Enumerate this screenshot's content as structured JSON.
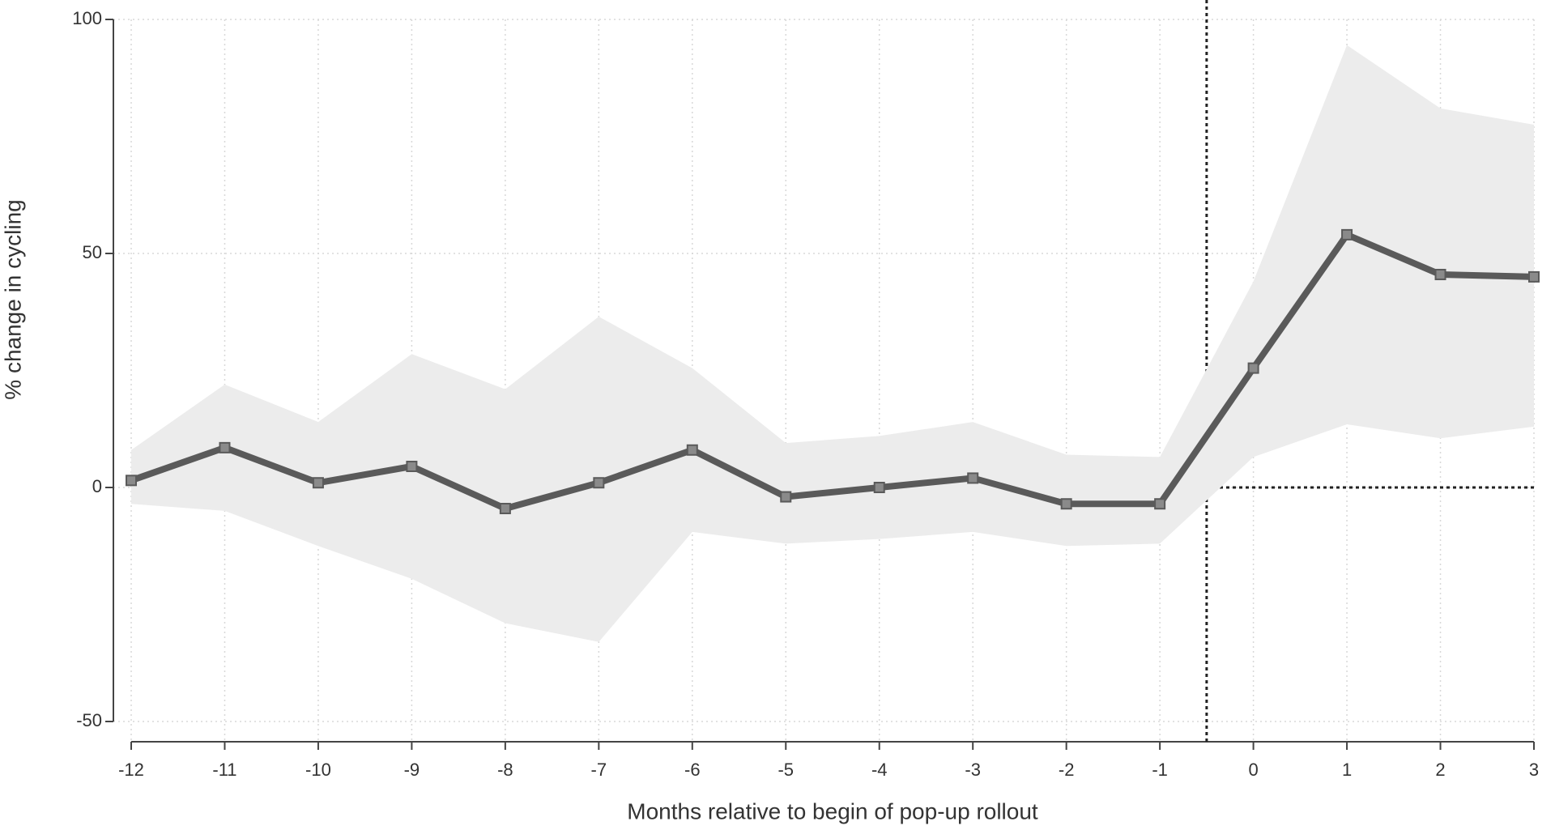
{
  "chart_data": {
    "type": "line",
    "x_label": "Months relative to begin of pop-up rollout",
    "y_label": "% change in cycling",
    "x": [
      -12,
      -11,
      -10,
      -9,
      -8,
      -7,
      -6,
      -5,
      -4,
      -3,
      -2,
      -1,
      0,
      1,
      2,
      3
    ],
    "values": [
      1.5,
      8.5,
      1,
      4.5,
      -4.5,
      1,
      8,
      -2,
      0,
      2,
      -3.5,
      -3.5,
      25.5,
      54,
      45.5,
      45
    ],
    "ci_upper": [
      8,
      22,
      14,
      28.5,
      21,
      36.5,
      25.5,
      9.5,
      11,
      14,
      7,
      6.5,
      44,
      94.5,
      81,
      77.5
    ],
    "ci_lower": [
      -3.5,
      -5,
      -12.5,
      -19.5,
      -29,
      -33,
      -9.5,
      -12,
      -11,
      -9.5,
      -12.5,
      -12,
      6.5,
      13.5,
      10.5,
      13
    ],
    "color": "#5a5a5a",
    "band_color": "#ececec",
    "xlim": [
      -12,
      3
    ],
    "ylim": [
      -50,
      100
    ],
    "xticks": [
      -12,
      -11,
      -10,
      -9,
      -8,
      -7,
      -6,
      -5,
      -4,
      -3,
      -2,
      -1,
      0,
      1,
      2,
      3
    ],
    "yticks": [
      -50,
      0,
      50,
      100
    ],
    "vline": -0.5,
    "hline": 0,
    "grid": true
  }
}
